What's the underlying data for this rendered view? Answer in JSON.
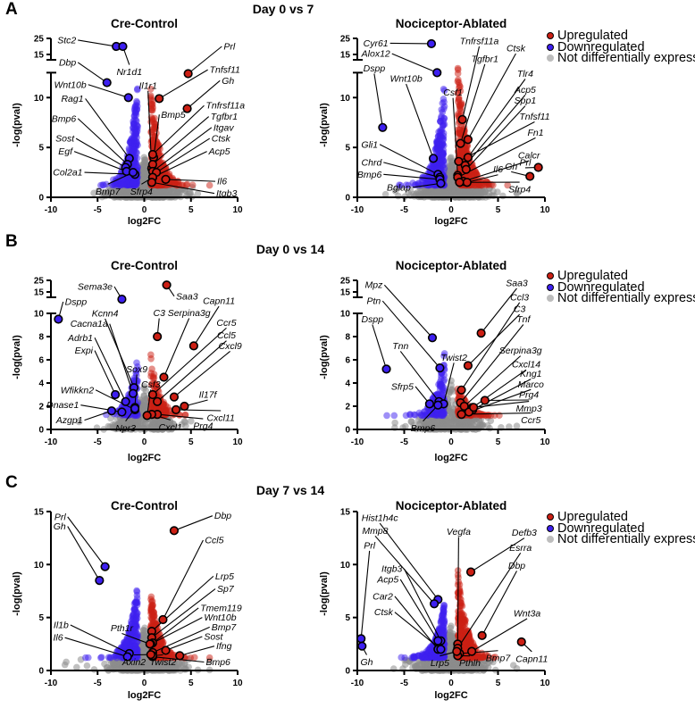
{
  "figure": {
    "rows": [
      {
        "letter": "A",
        "title": "Day 0 vs 7"
      },
      {
        "letter": "B",
        "title": "Day 0 vs 14"
      },
      {
        "letter": "C",
        "title": "Day 7 vs 14"
      }
    ]
  },
  "legend": {
    "up": "Upregulated",
    "down": "Downregulated",
    "ns": "Not differentially expressed"
  },
  "colors": {
    "up": "#cc1f14",
    "down": "#3d1ff0",
    "ns": "#8c8c8c"
  },
  "chart_data": [
    {
      "type": "scatter",
      "row": 0,
      "title": "Cre-Control",
      "xlabel": "log2FC",
      "ylabel": "-log(pval)",
      "xlim": [
        -10,
        10
      ],
      "xticks": [
        -10,
        -5,
        0,
        5,
        10
      ],
      "ylim": [
        0,
        25
      ],
      "yticks": [
        0,
        5,
        10,
        15,
        25
      ],
      "axis_break": [
        12.5,
        15
      ],
      "point_fields": [
        "gene",
        "log2fc",
        "neglog_pval",
        "status"
      ],
      "points": [
        [
          "Stc2",
          -3.0,
          20,
          "down"
        ],
        [
          "Nr1d1",
          -2.3,
          20,
          "down"
        ],
        [
          "Dbp",
          -4.0,
          11.5,
          "down"
        ],
        [
          "Wnt10b",
          -1.7,
          10,
          "down"
        ],
        [
          "Rag1",
          -1.6,
          3.9,
          "down"
        ],
        [
          "Bmp6",
          -1.8,
          3.3,
          "down"
        ],
        [
          "Sost",
          -2.0,
          3.0,
          "down"
        ],
        [
          "Egf",
          -1.9,
          2.6,
          "down"
        ],
        [
          "Col2a1",
          -1.0,
          2.3,
          "down"
        ],
        [
          "Bmp7",
          -1.2,
          2.5,
          "down"
        ],
        [
          "Sfrp4",
          0.9,
          2.0,
          "up"
        ],
        [
          "Prl",
          4.7,
          12.4,
          "up"
        ],
        [
          "Tnfsf11",
          1.6,
          9.9,
          "up"
        ],
        [
          "Gh",
          4.6,
          8.9,
          "up"
        ],
        [
          "Il1r1",
          0.8,
          2.9,
          "up"
        ],
        [
          "Bmp5",
          1.0,
          4.0,
          "up"
        ],
        [
          "Tnfrsf11a",
          0.9,
          4.3,
          "up"
        ],
        [
          "Tgfbr1",
          0.9,
          3.3,
          "up"
        ],
        [
          "Itgav",
          0.9,
          2.6,
          "up"
        ],
        [
          "Ctsk",
          1.3,
          2.5,
          "up"
        ],
        [
          "Acp5",
          0.9,
          2.0,
          "up"
        ],
        [
          "Il6",
          2.3,
          1.8,
          "up"
        ],
        [
          "Itgb3",
          0.8,
          1.5,
          "up"
        ]
      ]
    },
    {
      "type": "scatter",
      "row": 0,
      "title": "Nociceptor-Ablated",
      "xlabel": "log2FC",
      "ylabel": "-log(pval)",
      "xlim": [
        -10,
        10
      ],
      "xticks": [
        -10,
        -5,
        0,
        5,
        10
      ],
      "ylim": [
        0,
        25
      ],
      "yticks": [
        0,
        5,
        10,
        15,
        25
      ],
      "axis_break": [
        12.5,
        15
      ],
      "point_fields": [
        "gene",
        "log2fc",
        "neglog_pval",
        "status"
      ],
      "points": [
        [
          "Cyr61",
          -2.1,
          21.7,
          "down"
        ],
        [
          "Alox12",
          -1.5,
          12.5,
          "down"
        ],
        [
          "Dspp",
          -7.3,
          7.0,
          "down"
        ],
        [
          "Wnt10b",
          -1.9,
          3.9,
          "down"
        ],
        [
          "Gli1",
          -1.4,
          2.3,
          "down"
        ],
        [
          "Chrd",
          -1.2,
          2.0,
          "down"
        ],
        [
          "Bmp6",
          -1.2,
          1.8,
          "down"
        ],
        [
          "Bglap",
          -1.1,
          1.4,
          "down"
        ],
        [
          "Csf1",
          0.7,
          2.2,
          "up"
        ],
        [
          "Tnfrsf11a",
          1.2,
          7.8,
          "up"
        ],
        [
          "Tgfbr1",
          1.0,
          5.4,
          "up"
        ],
        [
          "Ctsk",
          1.8,
          5.8,
          "up"
        ],
        [
          "Tlr4",
          1.8,
          4.0,
          "up"
        ],
        [
          "Acp5",
          1.5,
          3.2,
          "up"
        ],
        [
          "Spp1",
          1.6,
          2.8,
          "up"
        ],
        [
          "Tnfsf11",
          0.8,
          3.6,
          "up"
        ],
        [
          "Fn1",
          0.7,
          2.0,
          "up"
        ],
        [
          "Calcr",
          1.3,
          1.6,
          "up"
        ],
        [
          "Il6",
          1.7,
          1.5,
          "up"
        ],
        [
          "Gh",
          8.4,
          2.1,
          "up"
        ],
        [
          "Prl",
          9.3,
          3.0,
          "up"
        ],
        [
          "Sfrp4",
          0.9,
          1.5,
          "up"
        ]
      ]
    },
    {
      "type": "scatter",
      "row": 1,
      "title": "Cre-Control",
      "xlabel": "log2FC",
      "ylabel": "-log(pval)",
      "xlim": [
        -10,
        10
      ],
      "xticks": [
        -10,
        -5,
        0,
        5,
        10
      ],
      "ylim": [
        0,
        25
      ],
      "yticks": [
        0,
        2,
        4,
        6,
        8,
        10,
        15,
        25
      ],
      "axis_break": [
        10,
        15
      ],
      "point_fields": [
        "gene",
        "log2fc",
        "neglog_pval",
        "status"
      ],
      "points": [
        [
          "Sema3e",
          -2.4,
          13.3,
          "down"
        ],
        [
          "Dspp",
          -9.2,
          9.5,
          "down"
        ],
        [
          "Kcnn4",
          -1.1,
          3.6,
          "down"
        ],
        [
          "Cacna1a",
          -1.2,
          3.1,
          "down"
        ],
        [
          "Adrb1",
          -2.0,
          2.4,
          "down"
        ],
        [
          "Expi",
          -3.1,
          3.0,
          "down"
        ],
        [
          "Sox9",
          -1.0,
          1.9,
          "down"
        ],
        [
          "Wfikkn2",
          -1.0,
          1.7,
          "down"
        ],
        [
          "Dnase1",
          -2.4,
          1.5,
          "down"
        ],
        [
          "Azgp1",
          -3.5,
          1.6,
          "down"
        ],
        [
          "Npr3",
          -1.0,
          1.8,
          "down"
        ],
        [
          "Saa3",
          2.4,
          21,
          "up"
        ],
        [
          "C3",
          1.4,
          8.0,
          "up"
        ],
        [
          "Capn11",
          5.3,
          7.2,
          "up"
        ],
        [
          "Serpina3g",
          2.1,
          4.5,
          "up"
        ],
        [
          "Ccr5",
          0.9,
          3.0,
          "up"
        ],
        [
          "Ccl5",
          1.4,
          2.4,
          "up"
        ],
        [
          "Cxcl9",
          3.2,
          2.8,
          "up"
        ],
        [
          "Il17f",
          4.3,
          2.0,
          "up"
        ],
        [
          "Cxcl11",
          3.4,
          1.7,
          "up"
        ],
        [
          "Prg4",
          1.4,
          1.3,
          "up"
        ],
        [
          "Cxcl1",
          0.8,
          1.3,
          "up"
        ],
        [
          "Csf3",
          0.3,
          1.2,
          "up"
        ]
      ]
    },
    {
      "type": "scatter",
      "row": 1,
      "title": "Nociceptor-Ablated",
      "xlabel": "log2FC",
      "ylabel": "-log(pval)",
      "xlim": [
        -10,
        10
      ],
      "xticks": [
        -10,
        -5,
        0,
        5,
        10
      ],
      "ylim": [
        0,
        25
      ],
      "yticks": [
        0,
        2,
        4,
        6,
        8,
        10,
        15,
        25
      ],
      "axis_break": [
        10,
        15
      ],
      "point_fields": [
        "gene",
        "log2fc",
        "neglog_pval",
        "status"
      ],
      "points": [
        [
          "Mpz",
          -2.0,
          7.9,
          "down"
        ],
        [
          "Ptn",
          -1.2,
          5.3,
          "down"
        ],
        [
          "Dspp",
          -6.9,
          5.2,
          "down"
        ],
        [
          "Tnn",
          -1.3,
          2.4,
          "down"
        ],
        [
          "Twist2",
          -0.8,
          2.2,
          "down"
        ],
        [
          "Sfrp5",
          -2.3,
          2.2,
          "down"
        ],
        [
          "Bmp6",
          -1.4,
          2.1,
          "down"
        ],
        [
          "Saa3",
          3.2,
          8.3,
          "up"
        ],
        [
          "Ccl3",
          1.1,
          3.4,
          "up"
        ],
        [
          "C3",
          1.8,
          5.5,
          "up"
        ],
        [
          "Tnf",
          1.0,
          2.3,
          "up"
        ],
        [
          "Serpina3g",
          1.4,
          2.0,
          "up"
        ],
        [
          "Cxcl14",
          2.3,
          1.9,
          "up"
        ],
        [
          "Kng1",
          2.3,
          1.7,
          "up"
        ],
        [
          "Marco",
          1.9,
          1.5,
          "up"
        ],
        [
          "Prg4",
          3.6,
          2.5,
          "up"
        ],
        [
          "Mmp3",
          2.4,
          1.9,
          "up"
        ],
        [
          "Ccr5",
          1.1,
          1.3,
          "up"
        ]
      ]
    },
    {
      "type": "scatter",
      "row": 2,
      "title": "Cre-Control",
      "xlabel": "log2FC",
      "ylabel": "-log(pval)",
      "xlim": [
        -10,
        10
      ],
      "xticks": [
        -10,
        -5,
        0,
        5,
        10
      ],
      "ylim": [
        0,
        15
      ],
      "yticks": [
        0,
        5,
        10,
        15
      ],
      "point_fields": [
        "gene",
        "log2fc",
        "neglog_pval",
        "status"
      ],
      "points": [
        [
          "Prl",
          -4.2,
          9.8,
          "down"
        ],
        [
          "Gh",
          -4.8,
          8.5,
          "down"
        ],
        [
          "Il1b",
          -1.6,
          1.6,
          "down"
        ],
        [
          "Il6",
          -1.8,
          1.3,
          "down"
        ],
        [
          "Dbp",
          3.2,
          13.2,
          "up"
        ],
        [
          "Ccl5",
          2.0,
          4.8,
          "up"
        ],
        [
          "Lrp5",
          0.8,
          3.7,
          "up"
        ],
        [
          "Sp7",
          0.8,
          3.1,
          "up"
        ],
        [
          "Tmem119",
          0.9,
          2.6,
          "up"
        ],
        [
          "Wnt10b",
          0.7,
          2.5,
          "up"
        ],
        [
          "Bmp7",
          0.9,
          1.7,
          "up"
        ],
        [
          "Sost",
          2.3,
          1.9,
          "up"
        ],
        [
          "Ifng",
          3.8,
          1.4,
          "up"
        ],
        [
          "Bmp6",
          0.9,
          1.3,
          "up"
        ],
        [
          "Twist2",
          0.9,
          1.4,
          "up"
        ],
        [
          "Axin2",
          0.7,
          1.5,
          "up"
        ],
        [
          "Pth1r",
          0.6,
          2.5,
          "up"
        ]
      ]
    },
    {
      "type": "scatter",
      "row": 2,
      "title": "Nociceptor-Ablated",
      "xlabel": "log2FC",
      "ylabel": "-log(pval)",
      "xlim": [
        -10,
        10
      ],
      "xticks": [
        -10,
        -5,
        0,
        5,
        10
      ],
      "ylim": [
        0,
        15
      ],
      "yticks": [
        0,
        5,
        10,
        15
      ],
      "point_fields": [
        "gene",
        "log2fc",
        "neglog_pval",
        "status"
      ],
      "points": [
        [
          "Hist1h4c",
          -1.4,
          6.7,
          "down"
        ],
        [
          "Mmp8",
          -1.8,
          6.3,
          "down"
        ],
        [
          "Prl",
          -9.6,
          3.0,
          "down"
        ],
        [
          "Gh",
          -9.5,
          2.3,
          "down"
        ],
        [
          "Itgb3",
          -1.1,
          2.8,
          "down"
        ],
        [
          "Acp5",
          -1.4,
          2.8,
          "down"
        ],
        [
          "Car2",
          -1.4,
          2.0,
          "down"
        ],
        [
          "Ctsk",
          -1.1,
          2.0,
          "down"
        ],
        [
          "Vegfa",
          0.7,
          2.5,
          "up"
        ],
        [
          "Defb3",
          2.1,
          9.3,
          "up"
        ],
        [
          "Esrra",
          0.7,
          2.1,
          "up"
        ],
        [
          "Dbp",
          3.3,
          3.3,
          "up"
        ],
        [
          "Wnt3a",
          2.2,
          1.8,
          "up"
        ],
        [
          "Capn11",
          7.5,
          2.7,
          "up"
        ],
        [
          "Bmp7",
          0.9,
          1.6,
          "up"
        ],
        [
          "Pthlh",
          0.7,
          1.4,
          "up"
        ],
        [
          "Lrp5",
          0.6,
          1.8,
          "up"
        ]
      ]
    }
  ]
}
